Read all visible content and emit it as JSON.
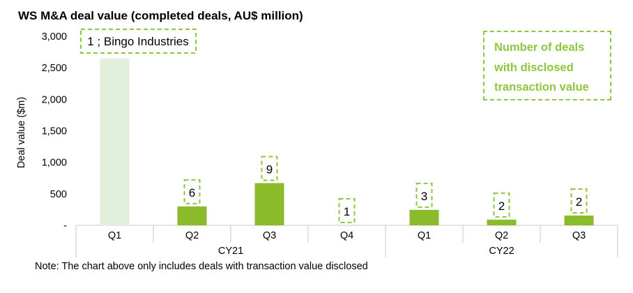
{
  "chart_data": {
    "type": "bar",
    "title": "WS M&A deal value (completed deals, AU$ million)",
    "ylabel": "Deal value ($m)",
    "xlabel": "",
    "ylim": [
      0,
      3000
    ],
    "yticks": [
      "-",
      "500",
      "1,000",
      "1,500",
      "2,000",
      "2,500",
      "3,000"
    ],
    "grid": false,
    "categories": [
      "Q1",
      "Q2",
      "Q3",
      "Q4",
      "Q1",
      "Q2",
      "Q3"
    ],
    "groups": [
      {
        "label": "CY21",
        "span": 4
      },
      {
        "label": "CY22",
        "span": 3
      }
    ],
    "values": [
      2650,
      300,
      670,
      0,
      245,
      90,
      155
    ],
    "deal_counts": [
      "1 ; Bingo Industries",
      "6",
      "9",
      "1",
      "3",
      "2",
      "2"
    ],
    "legend": {
      "text": "Number of deals\nwith disclosed\ntransaction value",
      "position": "top-right"
    },
    "colors": {
      "bar": "#8abb2a",
      "highlight_bar": "#e2efda",
      "label_border": "#8dc63f"
    },
    "note": "Note: The chart above only includes deals with transaction value disclosed"
  }
}
